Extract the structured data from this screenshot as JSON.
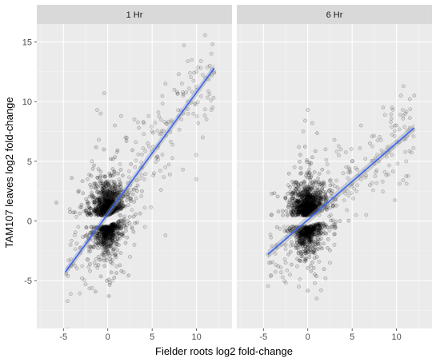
{
  "chart_data": {
    "type": "scatter",
    "xlabel": "Fielder roots log2 fold-change",
    "ylabel": "TAM107 leaves log2 fold-change",
    "xlim": [
      -8,
      14
    ],
    "ylim": [
      -9,
      16.5
    ],
    "x_ticks": [
      -5,
      0,
      5,
      10
    ],
    "y_ticks": [
      -5,
      0,
      5,
      10,
      15
    ],
    "grid": true,
    "colors": {
      "panel_bg": "#ebebeb",
      "strip_bg": "#d9d9d9",
      "grid_major": "#ffffff",
      "point": "#000000",
      "fit_line": "#3366ff",
      "confidence_band": "#999999"
    },
    "panels": [
      {
        "title": "1 Hr",
        "fit_line": {
          "x": [
            -4.8,
            12.0
          ],
          "y": [
            -4.3,
            12.8
          ]
        },
        "outliers": [
          [
            -4.5,
            -4.6
          ],
          [
            -4.2,
            -2.0
          ],
          [
            -3.5,
            -1.9
          ],
          [
            -2.9,
            -4.8
          ],
          [
            -2.5,
            -5.3
          ],
          [
            -2.0,
            -4.2
          ],
          [
            -1.5,
            -3.5
          ],
          [
            -1.2,
            9.3
          ],
          [
            -0.8,
            9.0
          ],
          [
            -0.4,
            10.7
          ],
          [
            -2.3,
            3.5
          ],
          [
            -1.8,
            5.0
          ],
          [
            -2.7,
            0.8
          ],
          [
            3.0,
            8.5
          ],
          [
            4.0,
            8.3
          ],
          [
            5.0,
            7.5
          ],
          [
            5.2,
            4.0
          ],
          [
            6.0,
            2.6
          ],
          [
            7.0,
            3.9
          ],
          [
            6.5,
            -1.2
          ],
          [
            6.5,
            11.5
          ],
          [
            7.5,
            11.0
          ],
          [
            8.0,
            12.3
          ],
          [
            8.5,
            10.5
          ],
          [
            9.0,
            10.0
          ],
          [
            9.5,
            10.8
          ],
          [
            10.0,
            12.5
          ],
          [
            10.5,
            13.4
          ],
          [
            11.0,
            12.0
          ],
          [
            11.5,
            13.0
          ],
          [
            11.8,
            14.8
          ],
          [
            12.0,
            12.5
          ],
          [
            10.0,
            3.5
          ],
          [
            10.7,
            7.0
          ],
          [
            8.5,
            9.0
          ],
          [
            4.5,
            6.5
          ],
          [
            3.5,
            7.8
          ],
          [
            2.5,
            -3.0
          ],
          [
            3.0,
            -2.0
          ],
          [
            1.8,
            -4.3
          ],
          [
            1.5,
            8.8
          ],
          [
            0.8,
            8.0
          ],
          [
            2.0,
            7.0
          ],
          [
            -1.0,
            6.8
          ],
          [
            1.0,
            -3.8
          ]
        ]
      },
      {
        "title": "6 Hr",
        "fit_line": {
          "x": [
            -4.5,
            12.0
          ],
          "y": [
            -2.8,
            7.8
          ]
        },
        "outliers": [
          [
            -4.5,
            -2.8
          ],
          [
            -3.5,
            -2.0
          ],
          [
            -2.5,
            -3.5
          ],
          [
            -3.0,
            -4.3
          ],
          [
            -2.0,
            -4.5
          ],
          [
            -1.5,
            4.5
          ],
          [
            -2.2,
            3.0
          ],
          [
            -0.5,
            7.5
          ],
          [
            0.0,
            9.3
          ],
          [
            -0.3,
            8.4
          ],
          [
            -1.0,
            6.2
          ],
          [
            2.0,
            6.0
          ],
          [
            3.0,
            6.8
          ],
          [
            3.5,
            5.5
          ],
          [
            4.0,
            4.0
          ],
          [
            5.0,
            5.0
          ],
          [
            6.0,
            3.5
          ],
          [
            6.5,
            5.2
          ],
          [
            7.0,
            6.5
          ],
          [
            7.5,
            4.8
          ],
          [
            8.0,
            5.0
          ],
          [
            9.0,
            6.2
          ],
          [
            9.5,
            9.5
          ],
          [
            10.0,
            8.0
          ],
          [
            10.5,
            10.5
          ],
          [
            11.0,
            9.0
          ],
          [
            11.5,
            7.8
          ],
          [
            12.0,
            10.5
          ],
          [
            11.5,
            10.2
          ],
          [
            8.5,
            9.5
          ],
          [
            1.0,
            -6.5
          ],
          [
            1.5,
            -5.8
          ],
          [
            2.0,
            -4.8
          ],
          [
            2.5,
            -3.5
          ],
          [
            -1.2,
            -3.8
          ],
          [
            0.5,
            8.2
          ],
          [
            4.5,
            2.5
          ],
          [
            6.0,
            8.0
          ],
          [
            3.0,
            -2.0
          ],
          [
            7.0,
            3.0
          ],
          [
            -1.0,
            -5.5
          ],
          [
            0.8,
            -5.2
          ]
        ]
      }
    ]
  }
}
